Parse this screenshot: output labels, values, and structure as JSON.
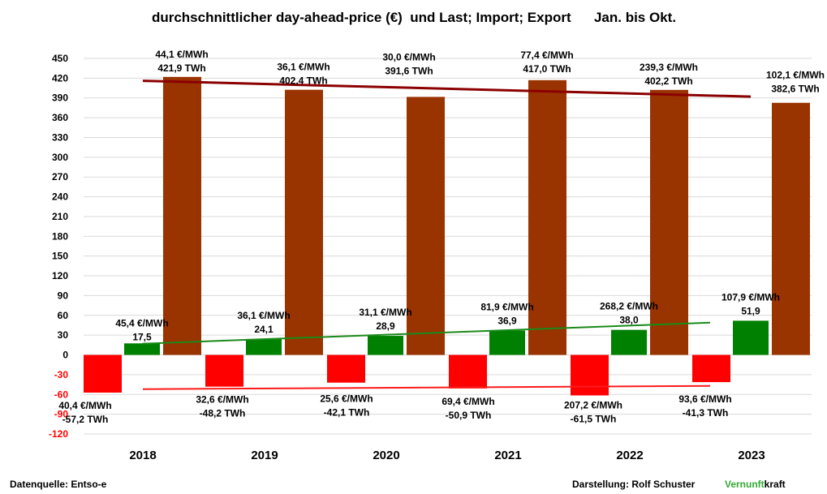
{
  "title": "durchschnittlicher day-ahead-price (€)  und Last; Import; Export      Jan. bis Okt.",
  "footer": {
    "source": "Datenquelle: Entso-e",
    "author": "Darstellung:  Rolf Schuster",
    "brand_part1": "Vernunft",
    "brand_part2": "kraft"
  },
  "colors": {
    "last": "#993300",
    "import": "#008000",
    "export": "#ff0000",
    "trend_last": "#8b0000",
    "trend_import": "#1a8a1a",
    "trend_export": "#ff1a1a",
    "negative_tick": "#ff0000",
    "brand_green": "#33aa33"
  },
  "chart_data": {
    "type": "bar",
    "categories": [
      "2018",
      "2019",
      "2020",
      "2021",
      "2022",
      "2023"
    ],
    "ylim": [
      -120,
      450
    ],
    "yticks": [
      "450",
      "420",
      "390",
      "360",
      "330",
      "300",
      "270",
      "240",
      "210",
      "180",
      "150",
      "120",
      "90",
      "60",
      "30",
      "0",
      "-30",
      "-60",
      "-90",
      "-120"
    ],
    "grid": true,
    "series": [
      {
        "key": "export",
        "values": [
          -57.2,
          -48.2,
          -42.1,
          -50.9,
          -61.5,
          -41.3
        ],
        "price_labels": [
          "40,4 €/MWh",
          "32,6 €/MWh",
          "25,6 €/MWh",
          "69,4 €/MWh",
          "207,2 €/MWh",
          "93,6 €/MWh"
        ],
        "value_labels": [
          "-57,2 TWh",
          "-48,2 TWh",
          "-42,1 TWh",
          "-50,9 TWh",
          "-61,5 TWh",
          "-41,3 TWh"
        ]
      },
      {
        "key": "import",
        "values": [
          17.5,
          24.1,
          28.9,
          36.9,
          38.0,
          51.9
        ],
        "price_labels": [
          "45,4 €/MWh",
          "36,1 €/MWh",
          "31,1 €/MWh",
          "81,9 €/MWh",
          "268,2 €/MWh",
          "107,9 €/MWh"
        ],
        "value_labels": [
          "17,5",
          "24,1",
          "28,9",
          "36,9",
          "38,0",
          "51,9"
        ]
      },
      {
        "key": "last",
        "values": [
          421.9,
          402.4,
          391.6,
          417.0,
          402.2,
          382.6
        ],
        "price_labels": [
          "44,1 €/MWh",
          "36,1 €/MWh",
          "30,0 €/MWh",
          "77,4 €/MWh",
          "239,3 €/MWh",
          "102,1 €/MWh"
        ],
        "value_labels": [
          "421,9 TWh",
          "402,4 TWh",
          "391,6 TWh",
          "417,0 TWh",
          "402,2 TWh",
          "382,6 TWh"
        ]
      }
    ],
    "trendlines": [
      {
        "series": "last",
        "from": 416,
        "to": 392
      },
      {
        "series": "import",
        "from": 17,
        "to": 49
      },
      {
        "series": "export",
        "from": -52,
        "to": -47
      }
    ]
  }
}
